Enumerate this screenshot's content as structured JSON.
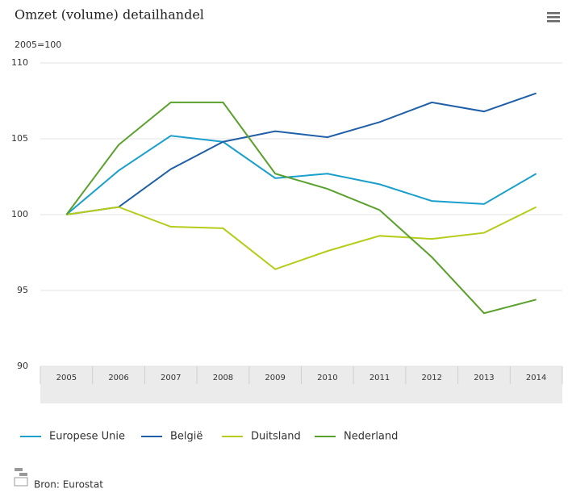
{
  "chart_data": {
    "type": "line",
    "title": "Omzet (volume) detailhandel",
    "subtitle": "2005=100",
    "categories": [
      "2005",
      "2006",
      "2007",
      "2008",
      "2009",
      "2010",
      "2011",
      "2012",
      "2013",
      "2014"
    ],
    "series": [
      {
        "name": "Europese Unie",
        "color": "#1a9fcc",
        "values": [
          100,
          102.9,
          105.2,
          104.8,
          102.4,
          102.7,
          102.0,
          100.9,
          100.7,
          102.7
        ]
      },
      {
        "name": "België",
        "color": "#1f5fa8",
        "values": [
          100,
          100.5,
          103.0,
          104.8,
          105.5,
          105.1,
          106.1,
          107.4,
          106.8,
          108.0
        ]
      },
      {
        "name": "Duitsland",
        "color": "#b5cc18",
        "values": [
          100,
          100.5,
          99.2,
          99.1,
          96.4,
          97.6,
          98.6,
          98.4,
          98.8,
          100.5
        ]
      },
      {
        "name": "Nederland",
        "color": "#5aa02c",
        "values": [
          100,
          104.6,
          107.4,
          107.4,
          102.7,
          101.7,
          100.3,
          97.2,
          93.5,
          94.4
        ]
      }
    ],
    "ylim": [
      90,
      110
    ],
    "yticks": [
      90,
      95,
      100,
      105,
      110
    ],
    "grid": true,
    "source": "Bron: Eurostat"
  }
}
